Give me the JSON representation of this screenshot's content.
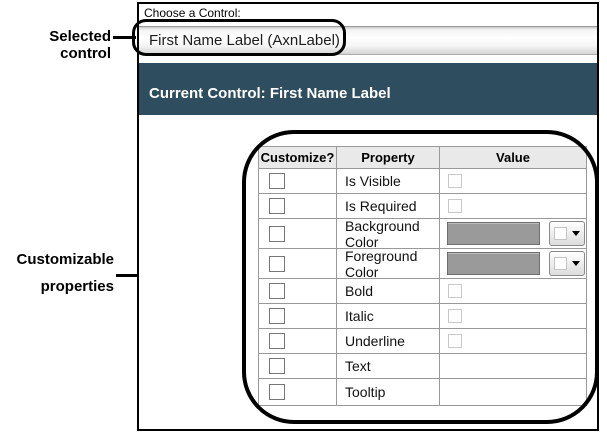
{
  "annotations": {
    "selected_control_label": "Selected control",
    "customizable_label_line1": "Customizable",
    "customizable_label_line2": "properties"
  },
  "control_chooser": {
    "label": "Choose a Control:",
    "selected_value": "First Name Label (AxnLabel)"
  },
  "current_control_header": "Current Control: First Name Label",
  "properties_table": {
    "columns": [
      "Customize?",
      "Property",
      "Value"
    ],
    "rows": [
      {
        "property": "Is Visible",
        "value_type": "checkbox",
        "customize_checked": false,
        "value_checked": false
      },
      {
        "property": "Is Required",
        "value_type": "checkbox",
        "customize_checked": false,
        "value_checked": false
      },
      {
        "property": "Background Color",
        "value_type": "color",
        "customize_checked": false
      },
      {
        "property": "Foreground Color",
        "value_type": "color",
        "customize_checked": false
      },
      {
        "property": "Bold",
        "value_type": "checkbox",
        "customize_checked": false,
        "value_checked": false
      },
      {
        "property": "Italic",
        "value_type": "checkbox",
        "customize_checked": false,
        "value_checked": false
      },
      {
        "property": "Underline",
        "value_type": "checkbox",
        "customize_checked": false,
        "value_checked": false
      },
      {
        "property": "Text",
        "value_type": "text",
        "customize_checked": false,
        "value": ""
      },
      {
        "property": "Tooltip",
        "value_type": "text",
        "customize_checked": false,
        "value": ""
      }
    ]
  },
  "colors": {
    "header_band": "#2E4D5F",
    "table_header_bg": "#E9E9E9",
    "color_swatch": "#9A9A9A"
  }
}
